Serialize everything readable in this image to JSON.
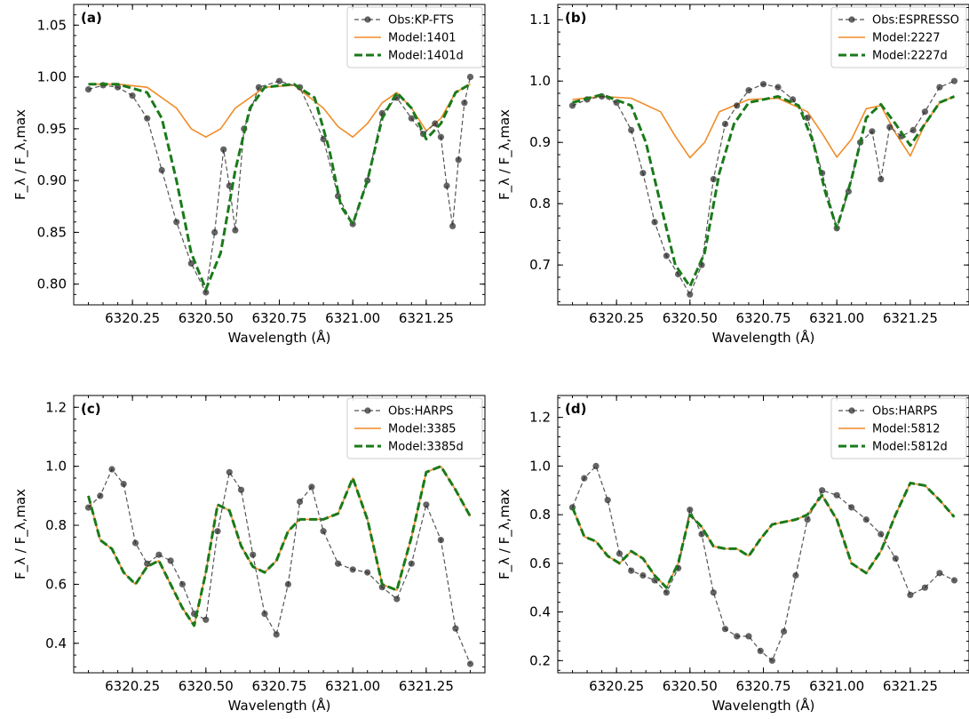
{
  "colors": {
    "observed": "#555555",
    "observed_marker": "#222222",
    "model": "#f08c28",
    "model_d": "#1a7a1a",
    "axis": "#000000"
  },
  "chart_data": [
    {
      "type": "line",
      "panel": "(a)",
      "xlabel": "Wavelength (Å)",
      "ylabel": "F_λ / F_λ,max",
      "xlim": [
        6320.05,
        6321.45
      ],
      "ylim": [
        0.78,
        1.07
      ],
      "xticks": [
        6320.25,
        6320.5,
        6320.75,
        6321.0,
        6321.25
      ],
      "xtick_labels": [
        "6320.25",
        "6320.50",
        "6320.75",
        "6321.00",
        "6321.25"
      ],
      "yticks": [
        0.8,
        0.85,
        0.9,
        0.95,
        1.0,
        1.05
      ],
      "ytick_labels": [
        "0.80",
        "0.85",
        "0.90",
        "0.95",
        "1.00",
        "1.05"
      ],
      "legend_position": "top-right",
      "series": [
        {
          "name": "Obs:KP-FTS",
          "style": "obs",
          "x": [
            6320.1,
            6320.15,
            6320.2,
            6320.25,
            6320.3,
            6320.35,
            6320.4,
            6320.45,
            6320.5,
            6320.53,
            6320.56,
            6320.58,
            6320.6,
            6320.63,
            6320.68,
            6320.75,
            6320.82,
            6320.9,
            6320.95,
            6321.0,
            6321.05,
            6321.1,
            6321.15,
            6321.2,
            6321.24,
            6321.28,
            6321.3,
            6321.32,
            6321.34,
            6321.36,
            6321.38,
            6321.4
          ],
          "y": [
            0.988,
            0.992,
            0.99,
            0.982,
            0.96,
            0.91,
            0.86,
            0.82,
            0.792,
            0.85,
            0.93,
            0.895,
            0.852,
            0.95,
            0.99,
            0.996,
            0.99,
            0.94,
            0.885,
            0.858,
            0.9,
            0.965,
            0.98,
            0.96,
            0.945,
            0.955,
            0.942,
            0.895,
            0.856,
            0.92,
            0.975,
            1.0
          ]
        },
        {
          "name": "Model:1401",
          "style": "model",
          "x": [
            6320.1,
            6320.2,
            6320.3,
            6320.4,
            6320.45,
            6320.5,
            6320.55,
            6320.6,
            6320.7,
            6320.8,
            6320.9,
            6320.95,
            6321.0,
            6321.05,
            6321.1,
            6321.15,
            6321.2,
            6321.25,
            6321.3,
            6321.35,
            6321.4
          ],
          "y": [
            0.993,
            0.993,
            0.99,
            0.97,
            0.95,
            0.942,
            0.95,
            0.97,
            0.99,
            0.992,
            0.97,
            0.952,
            0.942,
            0.955,
            0.975,
            0.985,
            0.97,
            0.948,
            0.96,
            0.985,
            0.993
          ]
        },
        {
          "name": "Model:1401d",
          "style": "model_d",
          "x": [
            6320.1,
            6320.2,
            6320.3,
            6320.35,
            6320.4,
            6320.45,
            6320.5,
            6320.55,
            6320.6,
            6320.65,
            6320.7,
            6320.8,
            6320.87,
            6320.92,
            6320.96,
            6321.0,
            6321.05,
            6321.1,
            6321.15,
            6321.2,
            6321.25,
            6321.3,
            6321.35,
            6321.4
          ],
          "y": [
            0.993,
            0.993,
            0.985,
            0.96,
            0.9,
            0.83,
            0.795,
            0.83,
            0.91,
            0.97,
            0.99,
            0.993,
            0.98,
            0.93,
            0.875,
            0.858,
            0.9,
            0.96,
            0.985,
            0.97,
            0.94,
            0.955,
            0.985,
            0.993
          ]
        }
      ]
    },
    {
      "type": "line",
      "panel": "(b)",
      "xlabel": "Wavelength (Å)",
      "ylabel": "F_λ / F_λ,max",
      "xlim": [
        6320.05,
        6321.45
      ],
      "ylim": [
        0.635,
        1.125
      ],
      "xticks": [
        6320.25,
        6320.5,
        6320.75,
        6321.0,
        6321.25
      ],
      "xtick_labels": [
        "6320.25",
        "6320.50",
        "6320.75",
        "6321.00",
        "6321.25"
      ],
      "yticks": [
        0.7,
        0.8,
        0.9,
        1.0,
        1.1
      ],
      "ytick_labels": [
        "0.7",
        "0.8",
        "0.9",
        "1.0",
        "1.1"
      ],
      "legend_position": "top-right",
      "series": [
        {
          "name": "Obs:ESPRESSO",
          "style": "obs",
          "x": [
            6320.1,
            6320.15,
            6320.2,
            6320.25,
            6320.3,
            6320.34,
            6320.38,
            6320.42,
            6320.46,
            6320.5,
            6320.54,
            6320.58,
            6320.62,
            6320.66,
            6320.7,
            6320.75,
            6320.8,
            6320.85,
            6320.9,
            6320.95,
            6321.0,
            6321.04,
            6321.08,
            6321.12,
            6321.15,
            6321.18,
            6321.22,
            6321.26,
            6321.3,
            6321.35,
            6321.4
          ],
          "y": [
            0.96,
            0.97,
            0.975,
            0.965,
            0.92,
            0.85,
            0.77,
            0.715,
            0.685,
            0.652,
            0.7,
            0.84,
            0.93,
            0.96,
            0.985,
            0.995,
            0.99,
            0.97,
            0.94,
            0.85,
            0.76,
            0.82,
            0.9,
            0.918,
            0.84,
            0.925,
            0.91,
            0.92,
            0.95,
            0.99,
            1.0
          ]
        },
        {
          "name": "Model:2227",
          "style": "model",
          "x": [
            6320.1,
            6320.2,
            6320.3,
            6320.4,
            6320.45,
            6320.5,
            6320.55,
            6320.6,
            6320.7,
            6320.8,
            6320.9,
            6320.95,
            6321.0,
            6321.05,
            6321.1,
            6321.15,
            6321.2,
            6321.25,
            6321.3,
            6321.35,
            6321.4
          ],
          "y": [
            0.97,
            0.975,
            0.972,
            0.95,
            0.91,
            0.875,
            0.9,
            0.95,
            0.97,
            0.972,
            0.95,
            0.915,
            0.876,
            0.905,
            0.955,
            0.96,
            0.915,
            0.878,
            0.93,
            0.965,
            0.975
          ]
        },
        {
          "name": "Model:2227d",
          "style": "model_d",
          "x": [
            6320.1,
            6320.2,
            6320.3,
            6320.35,
            6320.4,
            6320.45,
            6320.5,
            6320.55,
            6320.6,
            6320.65,
            6320.7,
            6320.8,
            6320.87,
            6320.92,
            6320.96,
            6321.0,
            6321.05,
            6321.1,
            6321.15,
            6321.2,
            6321.25,
            6321.3,
            6321.35,
            6321.4
          ],
          "y": [
            0.965,
            0.978,
            0.96,
            0.9,
            0.8,
            0.7,
            0.665,
            0.72,
            0.85,
            0.93,
            0.965,
            0.975,
            0.96,
            0.9,
            0.82,
            0.76,
            0.84,
            0.94,
            0.962,
            0.93,
            0.895,
            0.93,
            0.965,
            0.975
          ]
        }
      ]
    },
    {
      "type": "line",
      "panel": "(c)",
      "xlabel": "Wavelength (Å)",
      "ylabel": "F_λ / F_λ,max",
      "xlim": [
        6320.05,
        6321.45
      ],
      "ylim": [
        0.3,
        1.24
      ],
      "xticks": [
        6320.25,
        6320.5,
        6320.75,
        6321.0,
        6321.25
      ],
      "xtick_labels": [
        "6320.25",
        "6320.50",
        "6320.75",
        "6321.00",
        "6321.25"
      ],
      "yticks": [
        0.4,
        0.6,
        0.8,
        1.0,
        1.2
      ],
      "ytick_labels": [
        "0.4",
        "0.6",
        "0.8",
        "1.0",
        "1.2"
      ],
      "legend_position": "top-right",
      "series": [
        {
          "name": "Obs:HARPS",
          "style": "obs",
          "x": [
            6320.1,
            6320.14,
            6320.18,
            6320.22,
            6320.26,
            6320.3,
            6320.34,
            6320.38,
            6320.42,
            6320.46,
            6320.5,
            6320.54,
            6320.58,
            6320.62,
            6320.66,
            6320.7,
            6320.74,
            6320.78,
            6320.82,
            6320.86,
            6320.9,
            6320.95,
            6321.0,
            6321.05,
            6321.1,
            6321.15,
            6321.2,
            6321.25,
            6321.3,
            6321.35,
            6321.4
          ],
          "y": [
            0.86,
            0.9,
            0.99,
            0.94,
            0.74,
            0.67,
            0.7,
            0.68,
            0.6,
            0.5,
            0.48,
            0.78,
            0.98,
            0.92,
            0.7,
            0.5,
            0.43,
            0.6,
            0.88,
            0.93,
            0.78,
            0.67,
            0.65,
            0.64,
            0.59,
            0.55,
            0.67,
            0.87,
            0.75,
            0.45,
            0.33
          ]
        },
        {
          "name": "Model:3385",
          "style": "model",
          "x": [
            6320.1,
            6320.14,
            6320.18,
            6320.22,
            6320.26,
            6320.3,
            6320.34,
            6320.38,
            6320.42,
            6320.46,
            6320.5,
            6320.54,
            6320.58,
            6320.62,
            6320.66,
            6320.7,
            6320.74,
            6320.78,
            6320.82,
            6320.86,
            6320.9,
            6320.95,
            6321.0,
            6321.05,
            6321.1,
            6321.15,
            6321.2,
            6321.25,
            6321.3,
            6321.35,
            6321.4
          ],
          "y": [
            0.9,
            0.75,
            0.72,
            0.64,
            0.6,
            0.66,
            0.68,
            0.6,
            0.52,
            0.46,
            0.64,
            0.87,
            0.85,
            0.73,
            0.66,
            0.64,
            0.68,
            0.78,
            0.82,
            0.82,
            0.82,
            0.84,
            0.96,
            0.82,
            0.6,
            0.58,
            0.76,
            0.98,
            1.0,
            0.92,
            0.83
          ]
        },
        {
          "name": "Model:3385d",
          "style": "model_d",
          "x": [
            6320.1,
            6320.14,
            6320.18,
            6320.22,
            6320.26,
            6320.3,
            6320.34,
            6320.38,
            6320.42,
            6320.46,
            6320.5,
            6320.54,
            6320.58,
            6320.62,
            6320.66,
            6320.7,
            6320.74,
            6320.78,
            6320.82,
            6320.86,
            6320.9,
            6320.95,
            6321.0,
            6321.05,
            6321.1,
            6321.15,
            6321.2,
            6321.25,
            6321.3,
            6321.35,
            6321.4
          ],
          "y": [
            0.9,
            0.75,
            0.72,
            0.64,
            0.6,
            0.66,
            0.68,
            0.6,
            0.52,
            0.46,
            0.64,
            0.87,
            0.85,
            0.73,
            0.66,
            0.64,
            0.68,
            0.78,
            0.82,
            0.82,
            0.82,
            0.84,
            0.96,
            0.82,
            0.6,
            0.58,
            0.76,
            0.98,
            1.0,
            0.92,
            0.83
          ]
        }
      ]
    },
    {
      "type": "line",
      "panel": "(d)",
      "xlabel": "Wavelength (Å)",
      "ylabel": "F_λ / F_λ,max",
      "xlim": [
        6320.05,
        6321.45
      ],
      "ylim": [
        0.15,
        1.29
      ],
      "xticks": [
        6320.25,
        6320.5,
        6320.75,
        6321.0,
        6321.25
      ],
      "xtick_labels": [
        "6320.25",
        "6320.50",
        "6320.75",
        "6321.00",
        "6321.25"
      ],
      "yticks": [
        0.2,
        0.4,
        0.6,
        0.8,
        1.0,
        1.2
      ],
      "ytick_labels": [
        "0.2",
        "0.4",
        "0.6",
        "0.8",
        "1.0",
        "1.2"
      ],
      "legend_position": "top-right",
      "series": [
        {
          "name": "Obs:HARPS",
          "style": "obs",
          "x": [
            6320.1,
            6320.14,
            6320.18,
            6320.22,
            6320.26,
            6320.3,
            6320.34,
            6320.38,
            6320.42,
            6320.46,
            6320.5,
            6320.54,
            6320.58,
            6320.62,
            6320.66,
            6320.7,
            6320.74,
            6320.78,
            6320.82,
            6320.86,
            6320.9,
            6320.95,
            6321.0,
            6321.05,
            6321.1,
            6321.15,
            6321.2,
            6321.25,
            6321.3,
            6321.35,
            6321.4
          ],
          "y": [
            0.83,
            0.95,
            1.0,
            0.86,
            0.64,
            0.57,
            0.55,
            0.53,
            0.48,
            0.58,
            0.82,
            0.72,
            0.48,
            0.33,
            0.3,
            0.3,
            0.24,
            0.2,
            0.32,
            0.55,
            0.78,
            0.9,
            0.88,
            0.83,
            0.78,
            0.72,
            0.62,
            0.47,
            0.5,
            0.56,
            0.53
          ]
        },
        {
          "name": "Model:5812",
          "style": "model",
          "x": [
            6320.1,
            6320.14,
            6320.18,
            6320.22,
            6320.26,
            6320.3,
            6320.34,
            6320.38,
            6320.42,
            6320.46,
            6320.5,
            6320.54,
            6320.58,
            6320.62,
            6320.66,
            6320.7,
            6320.74,
            6320.78,
            6320.82,
            6320.86,
            6320.9,
            6320.95,
            6321.0,
            6321.05,
            6321.1,
            6321.15,
            6321.2,
            6321.25,
            6321.3,
            6321.35,
            6321.4
          ],
          "y": [
            0.83,
            0.71,
            0.69,
            0.63,
            0.6,
            0.65,
            0.62,
            0.55,
            0.5,
            0.6,
            0.8,
            0.75,
            0.67,
            0.66,
            0.66,
            0.63,
            0.7,
            0.76,
            0.77,
            0.78,
            0.8,
            0.88,
            0.78,
            0.6,
            0.56,
            0.65,
            0.8,
            0.93,
            0.92,
            0.86,
            0.79
          ]
        },
        {
          "name": "Model:5812d",
          "style": "model_d",
          "x": [
            6320.1,
            6320.14,
            6320.18,
            6320.22,
            6320.26,
            6320.3,
            6320.34,
            6320.38,
            6320.42,
            6320.46,
            6320.5,
            6320.54,
            6320.58,
            6320.62,
            6320.66,
            6320.7,
            6320.74,
            6320.78,
            6320.82,
            6320.86,
            6320.9,
            6320.95,
            6321.0,
            6321.05,
            6321.1,
            6321.15,
            6321.2,
            6321.25,
            6321.3,
            6321.35,
            6321.4
          ],
          "y": [
            0.83,
            0.71,
            0.69,
            0.63,
            0.6,
            0.65,
            0.62,
            0.55,
            0.5,
            0.6,
            0.8,
            0.75,
            0.67,
            0.66,
            0.66,
            0.63,
            0.7,
            0.76,
            0.77,
            0.78,
            0.8,
            0.88,
            0.78,
            0.6,
            0.56,
            0.65,
            0.8,
            0.93,
            0.92,
            0.86,
            0.79
          ]
        }
      ]
    }
  ]
}
